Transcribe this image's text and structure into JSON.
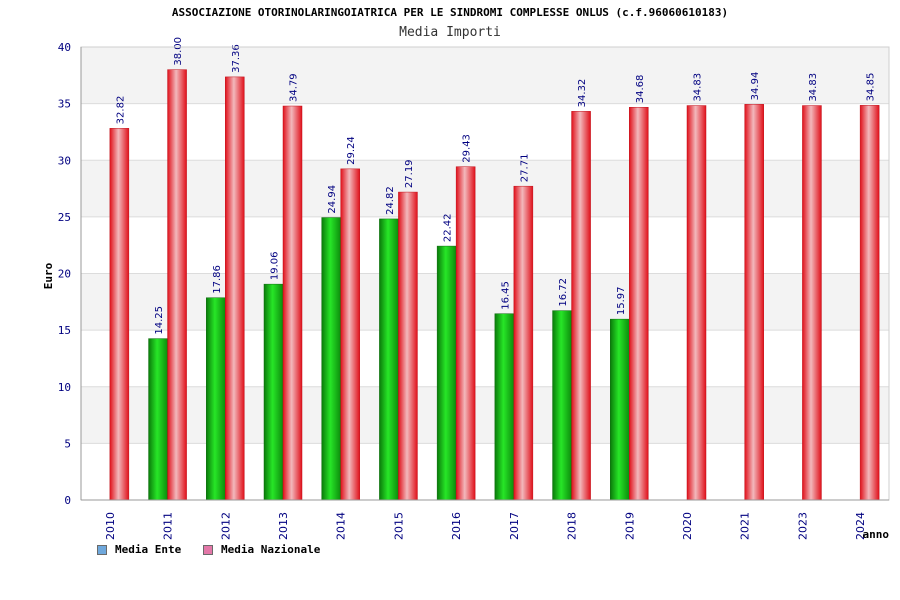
{
  "colors": {
    "ente": "#13b413",
    "nazionale": "#e81c24",
    "label": "#000080"
  },
  "chart_data": {
    "type": "bar",
    "title": "ASSOCIAZIONE OTORINOLARINGOIATRICA PER LE SINDROMI COMPLESSE ONLUS (c.f.96060610183)",
    "subtitle": "Media Importi",
    "xlabel": "anno",
    "ylabel": "Euro",
    "ylim": [
      0,
      40
    ],
    "yticks": [
      "0",
      "5",
      "10",
      "15",
      "20",
      "25",
      "30",
      "35",
      "40"
    ],
    "categories": [
      "2010",
      "2011",
      "2012",
      "2013",
      "2014",
      "2015",
      "2016",
      "2017",
      "2018",
      "2019",
      "2020",
      "2021",
      "2023",
      "2024"
    ],
    "series": [
      {
        "name": "Media Ente",
        "values": [
          null,
          14.25,
          17.86,
          19.06,
          24.94,
          24.82,
          22.42,
          16.45,
          16.72,
          15.97,
          null,
          null,
          null,
          null
        ],
        "labels": [
          "",
          "14.25",
          "17.86",
          "19.06",
          "24.94",
          "24.82",
          "22.42",
          "16.45",
          "16.72",
          "15.97",
          "",
          "",
          "",
          ""
        ]
      },
      {
        "name": "Media Nazionale",
        "values": [
          32.82,
          38.0,
          37.36,
          34.79,
          29.24,
          27.19,
          29.43,
          27.71,
          34.32,
          34.68,
          34.83,
          34.94,
          34.83,
          34.85
        ],
        "labels": [
          "32.82",
          "38.00",
          "37.36",
          "34.79",
          "29.24",
          "27.19",
          "29.43",
          "27.71",
          "34.32",
          "34.68",
          "34.83",
          "34.94",
          "34.83",
          "34.85"
        ]
      }
    ],
    "grid": true,
    "legend_position": "bottom-left"
  },
  "legend": [
    {
      "label": "Media Ente",
      "color": "#6fa8dc"
    },
    {
      "label": "Media Nazionale",
      "color": "#e377a8"
    }
  ]
}
